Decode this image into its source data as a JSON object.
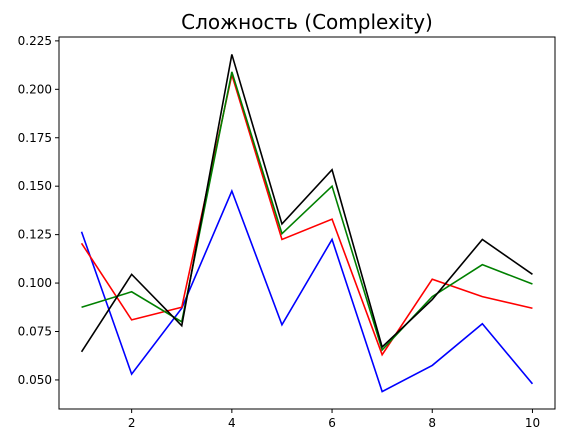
{
  "chart_data": {
    "type": "line",
    "title": "Сложность (Complexity)",
    "xlabel": "",
    "ylabel": "",
    "x": [
      1,
      2,
      3,
      4,
      5,
      6,
      7,
      8,
      9,
      10
    ],
    "xlim": [
      0.55,
      10.45
    ],
    "ylim": [
      0.035,
      0.227
    ],
    "xticks": [
      2,
      4,
      6,
      8,
      10
    ],
    "yticks": [
      0.05,
      0.075,
      0.1,
      0.125,
      0.15,
      0.175,
      0.2,
      0.225
    ],
    "ytick_labels": [
      "0.050",
      "0.075",
      "0.100",
      "0.125",
      "0.150",
      "0.175",
      "0.200",
      "0.225"
    ],
    "grid": false,
    "series": [
      {
        "color": "#0000ff",
        "values": [
          0.1265,
          0.053,
          0.087,
          0.1475,
          0.0785,
          0.1225,
          0.044,
          0.0575,
          0.079,
          0.048
        ]
      },
      {
        "color": "#ff0000",
        "values": [
          0.1205,
          0.081,
          0.0875,
          0.2075,
          0.1225,
          0.133,
          0.063,
          0.102,
          0.093,
          0.087
        ]
      },
      {
        "color": "#008000",
        "values": [
          0.0875,
          0.0955,
          0.08,
          0.209,
          0.1255,
          0.15,
          0.0655,
          0.093,
          0.1095,
          0.0995
        ]
      },
      {
        "color": "#000000",
        "values": [
          0.0645,
          0.1045,
          0.078,
          0.218,
          0.1305,
          0.1585,
          0.067,
          0.0915,
          0.1225,
          0.1045
        ]
      }
    ]
  }
}
